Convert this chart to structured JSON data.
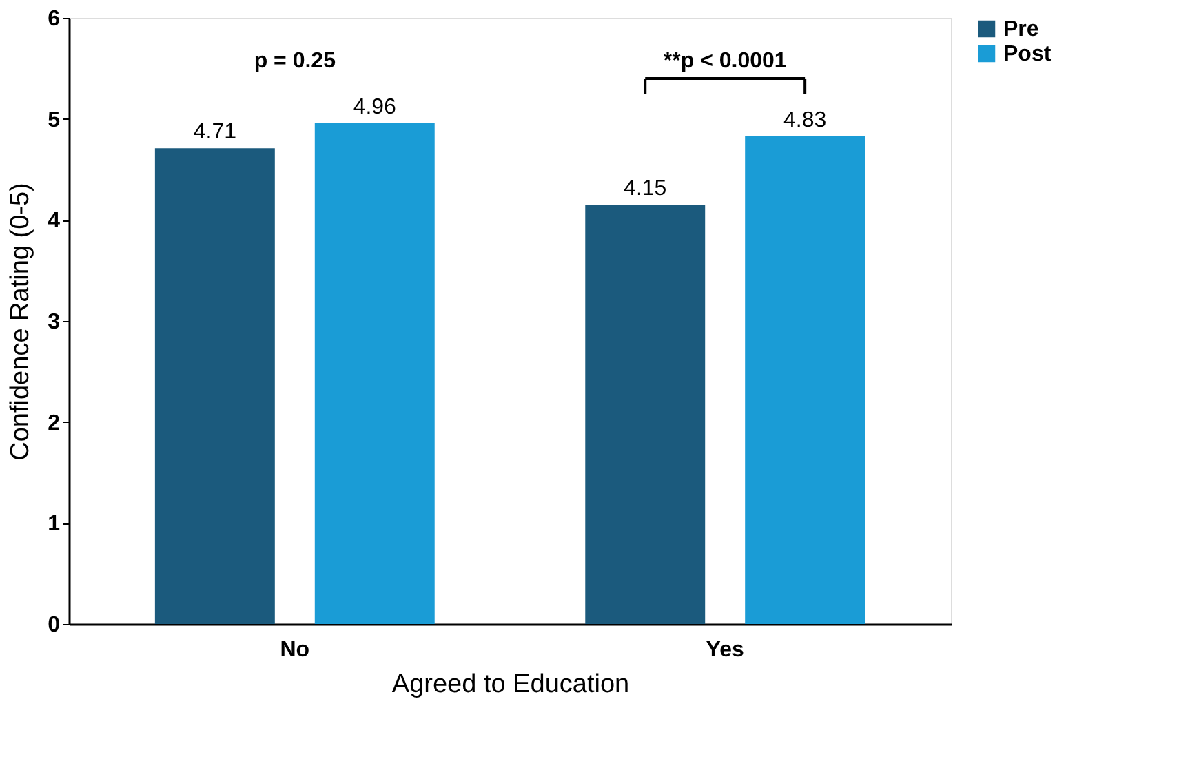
{
  "chart_data": {
    "type": "bar",
    "xlabel": "Agreed to Education",
    "ylabel": "Confidence Rating (0-5)",
    "categories": [
      "No",
      "Yes"
    ],
    "series": [
      {
        "name": "Pre",
        "color": "#1b5a7d",
        "values": [
          4.71,
          4.15
        ]
      },
      {
        "name": "Post",
        "color": "#1a9cd6",
        "values": [
          4.96,
          4.83
        ]
      }
    ],
    "ylim": [
      0,
      6
    ],
    "yticks": [
      0,
      1,
      2,
      3,
      4,
      5,
      6
    ],
    "grid": false,
    "legend": "right",
    "data_labels": true,
    "annotations": [
      "p = 0.25",
      "**p < 0.0001"
    ]
  }
}
